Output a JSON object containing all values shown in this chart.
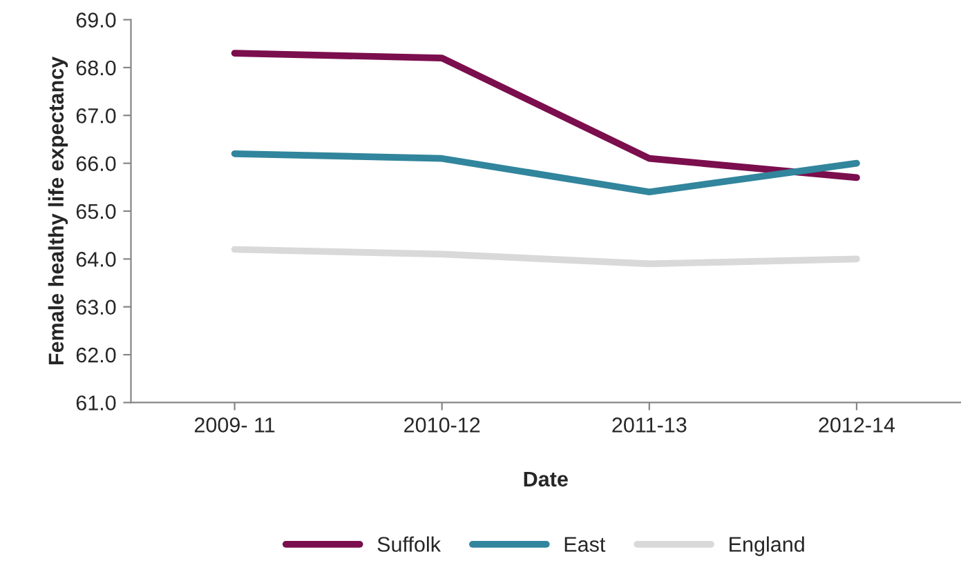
{
  "chart_data": {
    "type": "line",
    "xlabel": "Date",
    "ylabel": "Female healthy life expectancy",
    "categories": [
      "2009- 11",
      "2010-12",
      "2011-13",
      "2012-14"
    ],
    "series": [
      {
        "name": "Suffolk",
        "color": "#7b0e4d",
        "values": [
          68.3,
          68.2,
          66.1,
          65.7
        ]
      },
      {
        "name": "East",
        "color": "#31859c",
        "values": [
          66.2,
          66.1,
          65.4,
          66.0
        ]
      },
      {
        "name": "England",
        "color": "#d9d9d9",
        "values": [
          64.2,
          64.1,
          63.9,
          64.0
        ]
      }
    ],
    "ylim": [
      61,
      69
    ],
    "yticks": [
      {
        "value": 61,
        "label": "61.0"
      },
      {
        "value": 62,
        "label": "62.0"
      },
      {
        "value": 63,
        "label": "63.0"
      },
      {
        "value": 64,
        "label": "64.0"
      },
      {
        "value": 65,
        "label": "65.0"
      },
      {
        "value": 66,
        "label": "66.0"
      },
      {
        "value": 67,
        "label": "67.0"
      },
      {
        "value": 68,
        "label": "68.0"
      },
      {
        "value": 69,
        "label": "69.0"
      }
    ],
    "grid": false,
    "legend": "bottom",
    "marker": "none",
    "line_style": "solid"
  }
}
